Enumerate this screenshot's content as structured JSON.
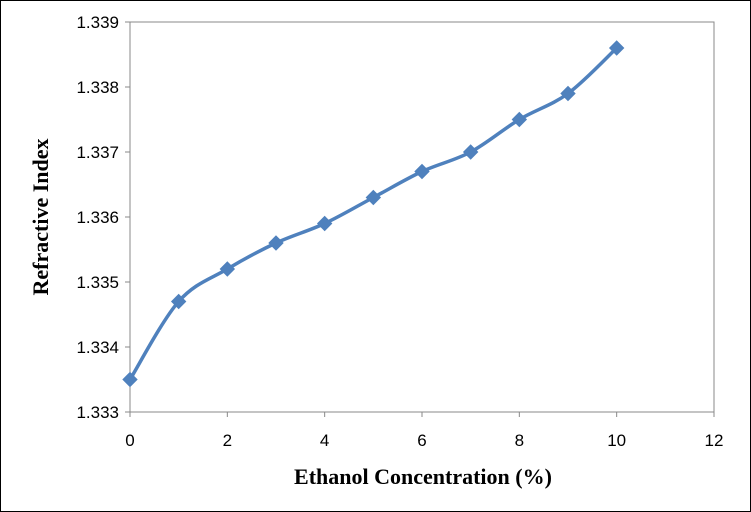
{
  "chart_data": {
    "type": "line",
    "title": "",
    "xlabel": "Ethanol Concentration (%)",
    "ylabel": "Refractive Index",
    "xlim": [
      0,
      12
    ],
    "ylim": [
      1.333,
      1.339
    ],
    "x_ticks": [
      "0",
      "2",
      "4",
      "6",
      "8",
      "10",
      "12"
    ],
    "y_ticks": [
      "1.333",
      "1.334",
      "1.335",
      "1.336",
      "1.337",
      "1.338",
      "1.339"
    ],
    "grid": false,
    "legend": "none",
    "marker": "diamond",
    "smoothed": true,
    "series": [
      {
        "color": "#4f81bd",
        "x": [
          0,
          1,
          2,
          3,
          4,
          5,
          6,
          7,
          8,
          9,
          10
        ],
        "y": [
          1.3335,
          1.3347,
          1.3352,
          1.3356,
          1.3359,
          1.3363,
          1.3367,
          1.337,
          1.3375,
          1.3379,
          1.3386
        ]
      }
    ]
  }
}
